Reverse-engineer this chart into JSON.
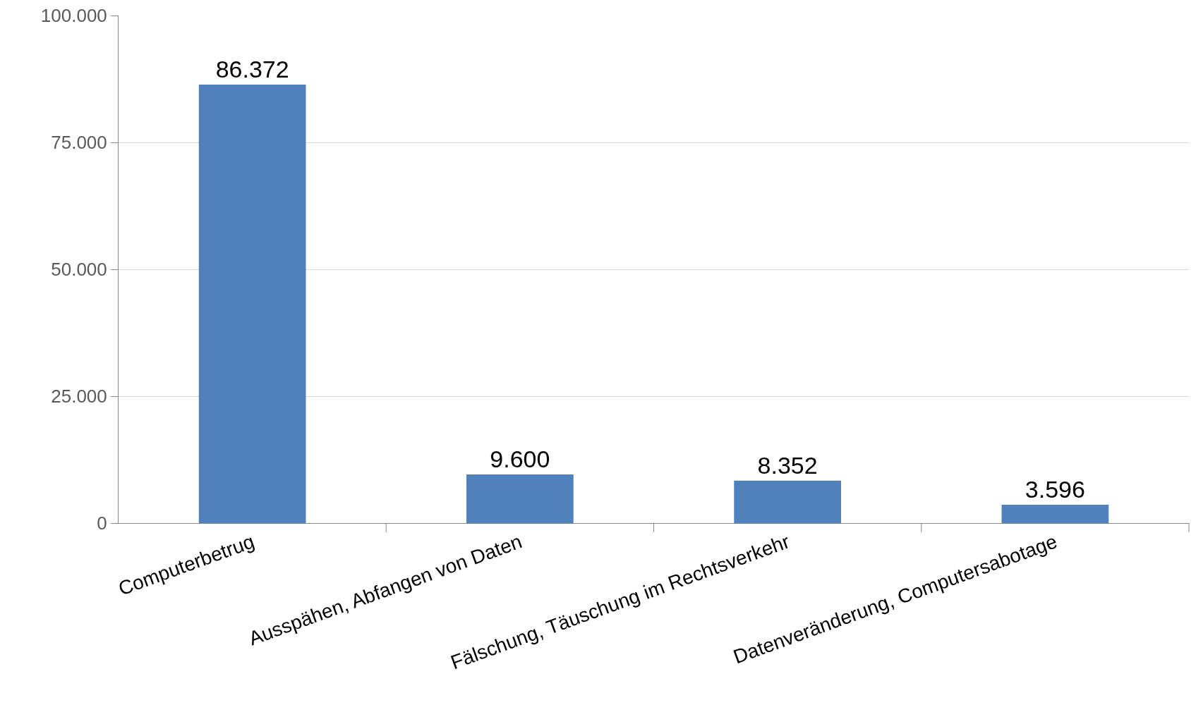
{
  "chart_data": {
    "type": "bar",
    "categories": [
      "Computerbetrug",
      "Ausspähen, Abfangen von Daten",
      "Fälschung, Täuschung im Rechtsverkehr",
      "Datenveränderung, Computersabotage"
    ],
    "values": [
      86372,
      9600,
      8352,
      3596
    ],
    "value_labels": [
      "86.372",
      "9.600",
      "8.352",
      "3.596"
    ],
    "color": "#4f81bd",
    "ylim": [
      0,
      100000
    ],
    "yticks": [
      {
        "value": 0,
        "label": "0"
      },
      {
        "value": 25000,
        "label": "25.000"
      },
      {
        "value": 50000,
        "label": "50.000"
      },
      {
        "value": 75000,
        "label": "75.000"
      },
      {
        "value": 100000,
        "label": "100.000"
      }
    ],
    "grid": "y",
    "legend": false
  }
}
